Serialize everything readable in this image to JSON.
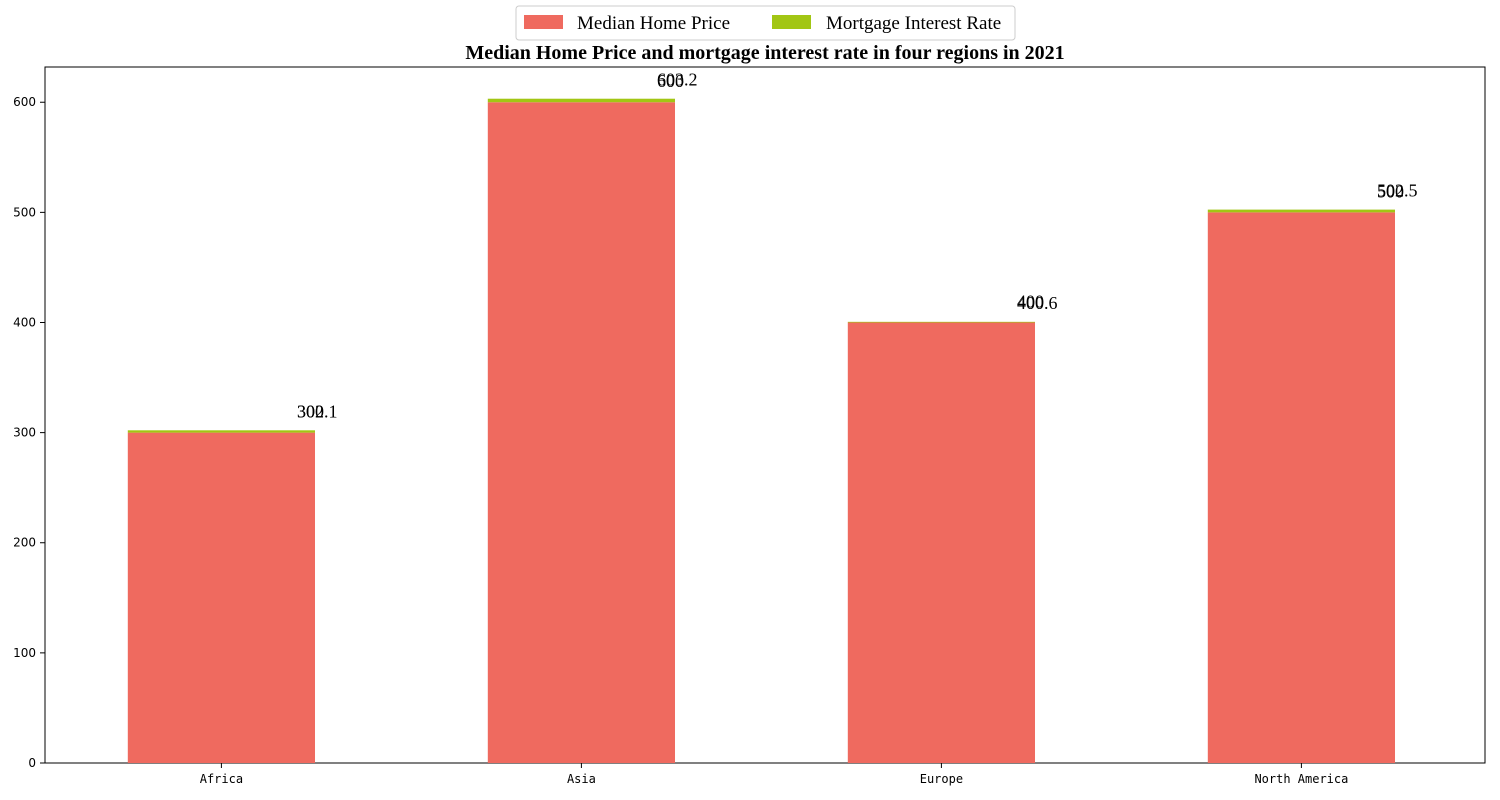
{
  "chart_data": {
    "type": "bar",
    "stacked": true,
    "title": "Median Home Price and mortgage interest rate in four regions in 2021",
    "xlabel": "",
    "ylabel": "",
    "categories": [
      "Africa",
      "Asia",
      "Europe",
      "North America"
    ],
    "series": [
      {
        "name": "Median Home Price",
        "values": [
          300,
          600,
          400,
          500
        ],
        "color": "#ef6a5f"
      },
      {
        "name": "Mortgage Interest Rate",
        "values": [
          2.1,
          3.2,
          0.6,
          2.5
        ],
        "color": "#a2c614"
      }
    ],
    "stack_totals": [
      302.1,
      603.2,
      400.6,
      502.5
    ],
    "base_labels": [
      "300",
      "600",
      "400",
      "500"
    ],
    "total_labels": [
      "302.1",
      "603.2",
      "400.6",
      "502.5"
    ],
    "ylim": [
      0,
      632
    ],
    "yticks": [
      0,
      100,
      200,
      300,
      400,
      500,
      600
    ],
    "grid": false,
    "legend_position": "top-center"
  }
}
